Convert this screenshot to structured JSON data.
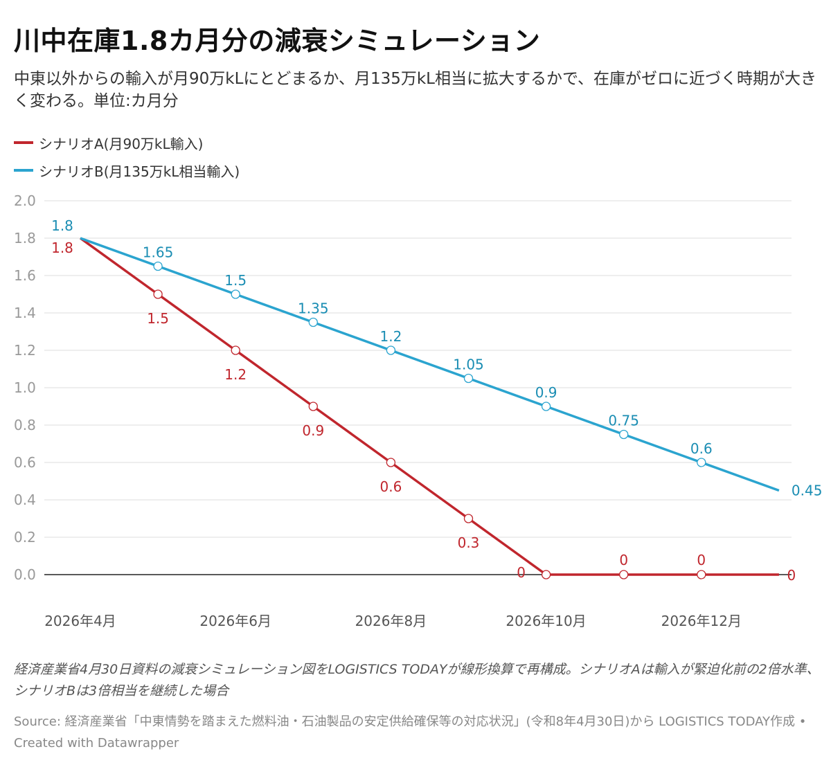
{
  "title": "川中在庫1.8カ月分の減衰シミュレーション",
  "subtitle": "中東以外からの輸入が月90万kLにとどまるか、月135万kL相当に拡大するかで、在庫がゼロに近づく時期が大きく変わる。単位:カ月分",
  "note": "経済産業省4月30日資料の減衰シミュレーション図をLOGISTICS TODAYが線形換算で再構成。シナリオAは輸入が緊迫化前の2倍水準、シナリオBは3倍相当を継続した場合",
  "source": "Source: 経済産業省「中東情勢を踏まえた燃料油・石油製品の安定供給確保等の対応状況」(令和8年4月30日)から LOGISTICS TODAY作成 • Created with Datawrapper",
  "colors": {
    "series_a": "#c0262d",
    "series_b": "#2ba4cf",
    "label_b": "#1a8db3",
    "grid": "#dddddd",
    "axis_text": "#999999",
    "zero_line": "#222222"
  },
  "chart_data": {
    "type": "line",
    "title": "川中在庫1.8カ月分の減衰シミュレーション",
    "ylabel": "",
    "xlabel": "",
    "ylim": [
      0,
      2
    ],
    "y_ticks": [
      "0.0",
      "0.2",
      "0.4",
      "0.6",
      "0.8",
      "1.0",
      "1.2",
      "1.4",
      "1.6",
      "1.8",
      "2.0"
    ],
    "x": [
      "2026-04",
      "2026-05",
      "2026-06",
      "2026-07",
      "2026-08",
      "2026-09",
      "2026-10",
      "2026-11",
      "2026-12",
      "2027-01"
    ],
    "x_tick_labels": [
      "2026年4月",
      "",
      "2026年6月",
      "",
      "2026年8月",
      "",
      "2026年10月",
      "",
      "2026年12月",
      ""
    ],
    "grid": true,
    "legend": "top-left",
    "series": [
      {
        "name": "シナリオA(月90万kL輸入)",
        "values": [
          1.8,
          1.5,
          1.2,
          0.9,
          0.6,
          0.3,
          0,
          0,
          0,
          0
        ],
        "labels": [
          "1.8",
          "1.5",
          "1.2",
          "0.9",
          "0.6",
          "0.3",
          "0",
          "0",
          "0",
          "0"
        ]
      },
      {
        "name": "シナリオB(月135万kL相当輸入)",
        "values": [
          1.8,
          1.65,
          1.5,
          1.35,
          1.2,
          1.05,
          0.9,
          0.75,
          0.6,
          0.45
        ],
        "labels": [
          "1.8",
          "1.65",
          "1.5",
          "1.35",
          "1.2",
          "1.05",
          "0.9",
          "0.75",
          "0.6",
          "0.45"
        ]
      }
    ]
  }
}
